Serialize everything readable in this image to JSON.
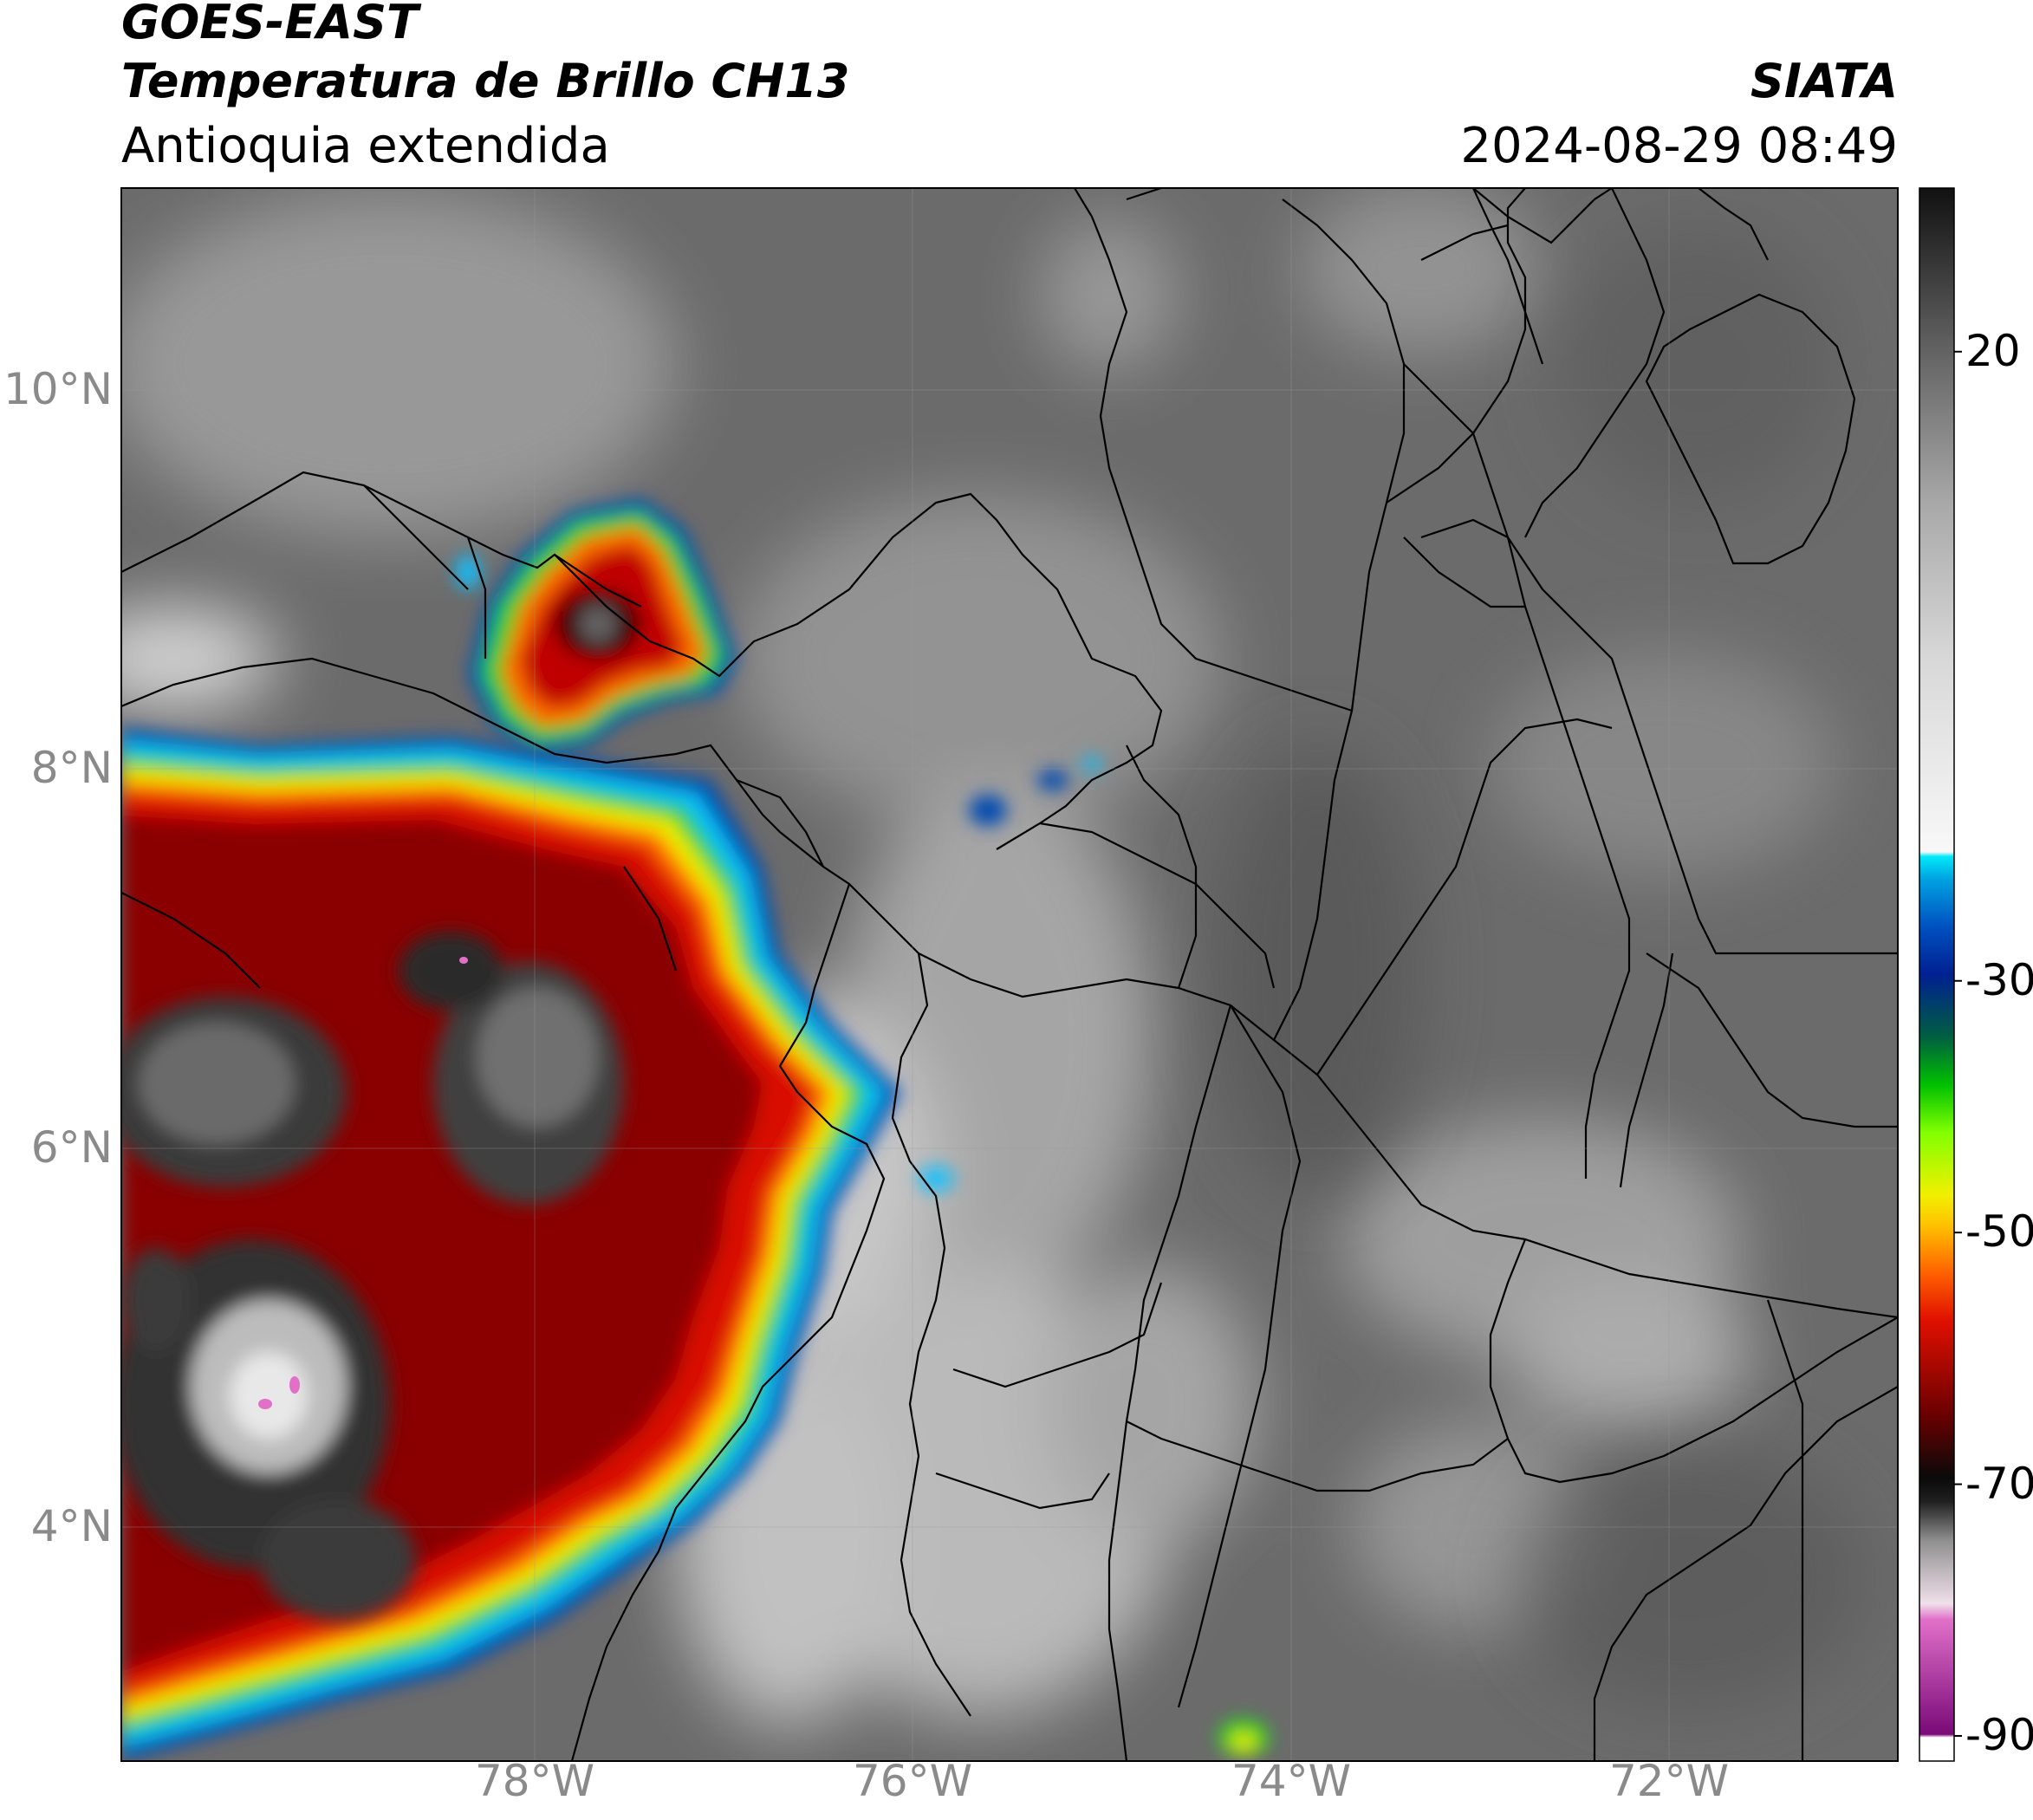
{
  "header": {
    "satellite": "GOES-EAST",
    "product": "Temperatura de Brillo CH13",
    "region": "Antioquia extendida",
    "source": "SIATA",
    "datetime": "2024-08-29 08:49"
  },
  "map": {
    "lat_ticks": [
      "10°N",
      "8°N",
      "6°N",
      "4°N"
    ],
    "lon_ticks": [
      "78°W",
      "76°W",
      "74°W",
      "72°W"
    ],
    "lon_range": [
      -80.0,
      -70.6
    ],
    "lat_range": [
      2.6,
      11.0
    ]
  },
  "colorbar": {
    "tick_labels": [
      "20",
      "-30",
      "-50",
      "-70",
      "-90"
    ],
    "tick_values": [
      20,
      -30,
      -50,
      -70,
      -90
    ],
    "range": [
      -92,
      33
    ]
  }
}
